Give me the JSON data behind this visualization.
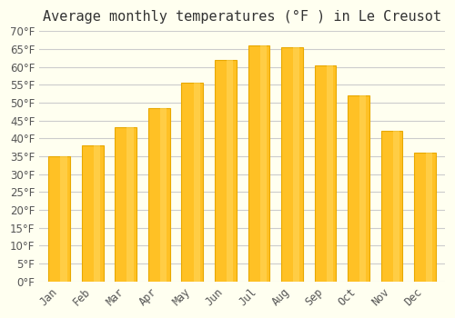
{
  "title": "Average monthly temperatures (°F ) in Le Creusot",
  "months": [
    "Jan",
    "Feb",
    "Mar",
    "Apr",
    "May",
    "Jun",
    "Jul",
    "Aug",
    "Sep",
    "Oct",
    "Nov",
    "Dec"
  ],
  "values": [
    35.0,
    38.0,
    43.0,
    48.5,
    55.5,
    62.0,
    66.0,
    65.5,
    60.5,
    52.0,
    42.0,
    36.0
  ],
  "bar_color": "#FFC125",
  "bar_edge_color": "#E8A800",
  "background_color": "#FFFFF0",
  "grid_color": "#CCCCCC",
  "text_color": "#555555",
  "ylim": [
    0,
    70
  ],
  "ytick_step": 5,
  "title_fontsize": 11,
  "tick_fontsize": 8.5,
  "font_family": "monospace"
}
